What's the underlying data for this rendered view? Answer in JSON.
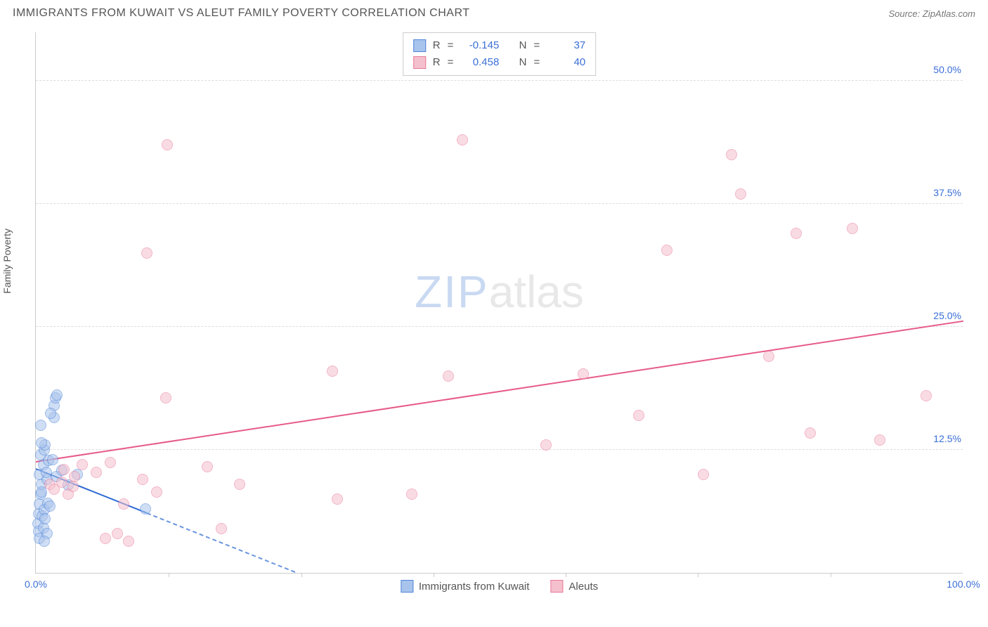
{
  "title": "IMMIGRANTS FROM KUWAIT VS ALEUT FAMILY POVERTY CORRELATION CHART",
  "source": "Source: ZipAtlas.com",
  "ylabel": "Family Poverty",
  "watermark": {
    "part1": "ZIP",
    "part2": "atlas"
  },
  "chart": {
    "type": "scatter",
    "xlim": [
      0,
      100
    ],
    "ylim": [
      0,
      55
    ],
    "yticks": [
      {
        "v": 12.5,
        "label": "12.5%"
      },
      {
        "v": 25.0,
        "label": "25.0%"
      },
      {
        "v": 37.5,
        "label": "37.5%"
      },
      {
        "v": 50.0,
        "label": "50.0%"
      }
    ],
    "xticks_labeled": [
      {
        "v": 0,
        "label": "0.0%"
      },
      {
        "v": 100,
        "label": "100.0%"
      }
    ],
    "xticks_minor": [
      14.3,
      28.6,
      42.9,
      57.1,
      71.4,
      85.7
    ],
    "background_color": "#ffffff",
    "grid_color": "#dddddd",
    "axis_color": "#cccccc",
    "tick_label_color": "#3b6fd6",
    "point_radius": 8,
    "point_opacity": 0.55,
    "series": [
      {
        "id": "kuwait",
        "label": "Immigrants from Kuwait",
        "color_fill": "#a9c4ec",
        "color_stroke": "#4f84d9",
        "R": "-0.145",
        "N": "37",
        "regression": {
          "x1": 0,
          "y1": 10.5,
          "x2": 12,
          "y2": 6.0,
          "solid": true,
          "color": "#2e6bd6"
        },
        "regression_ext": {
          "x1": 12,
          "y1": 6.0,
          "x2": 28,
          "y2": 0.0,
          "color": "#6a95e0"
        },
        "points": [
          [
            0.2,
            5.0
          ],
          [
            0.3,
            6.0
          ],
          [
            0.4,
            7.0
          ],
          [
            0.5,
            8.0
          ],
          [
            0.6,
            9.0
          ],
          [
            0.4,
            10.0
          ],
          [
            0.8,
            11.0
          ],
          [
            0.5,
            12.0
          ],
          [
            0.9,
            12.5
          ],
          [
            1.0,
            13.0
          ],
          [
            1.2,
            9.5
          ],
          [
            0.3,
            4.2
          ],
          [
            0.7,
            5.8
          ],
          [
            1.1,
            10.2
          ],
          [
            1.4,
            11.4
          ],
          [
            0.6,
            13.2
          ],
          [
            0.9,
            6.4
          ],
          [
            1.3,
            7.1
          ],
          [
            0.5,
            15.0
          ],
          [
            1.8,
            11.5
          ],
          [
            2.2,
            9.8
          ],
          [
            2.8,
            10.4
          ],
          [
            3.5,
            8.9
          ],
          [
            2.0,
            17.0
          ],
          [
            2.1,
            17.8
          ],
          [
            2.3,
            18.1
          ],
          [
            2.0,
            15.8
          ],
          [
            1.6,
            16.2
          ],
          [
            0.4,
            3.5
          ],
          [
            0.8,
            4.6
          ],
          [
            1.0,
            5.5
          ],
          [
            1.5,
            6.8
          ],
          [
            0.6,
            8.2
          ],
          [
            4.5,
            10.0
          ],
          [
            11.8,
            6.5
          ],
          [
            1.2,
            4.0
          ],
          [
            0.9,
            3.2
          ]
        ]
      },
      {
        "id": "aleuts",
        "label": "Aleuts",
        "color_fill": "#f5c0cd",
        "color_stroke": "#e97a9a",
        "R": "0.458",
        "N": "40",
        "regression": {
          "x1": 0,
          "y1": 11.2,
          "x2": 100,
          "y2": 25.5,
          "solid": true,
          "color": "#e75a87"
        },
        "points": [
          [
            1.5,
            9.0
          ],
          [
            2.0,
            8.5
          ],
          [
            2.8,
            9.2
          ],
          [
            3.5,
            8.0
          ],
          [
            4.2,
            9.8
          ],
          [
            3.0,
            10.5
          ],
          [
            5.0,
            11.0
          ],
          [
            6.5,
            10.2
          ],
          [
            7.5,
            3.5
          ],
          [
            8.8,
            4.0
          ],
          [
            10.0,
            3.2
          ],
          [
            8.0,
            11.2
          ],
          [
            9.5,
            7.0
          ],
          [
            11.5,
            9.5
          ],
          [
            13.0,
            8.2
          ],
          [
            14.0,
            17.8
          ],
          [
            14.2,
            43.5
          ],
          [
            12.0,
            32.5
          ],
          [
            18.5,
            10.8
          ],
          [
            20.0,
            4.5
          ],
          [
            22.0,
            9.0
          ],
          [
            32.0,
            20.5
          ],
          [
            32.5,
            7.5
          ],
          [
            40.5,
            8.0
          ],
          [
            44.5,
            20.0
          ],
          [
            46.0,
            44.0
          ],
          [
            55.0,
            13.0
          ],
          [
            59.0,
            20.2
          ],
          [
            65.0,
            16.0
          ],
          [
            68.0,
            32.8
          ],
          [
            72.0,
            10.0
          ],
          [
            75.0,
            42.5
          ],
          [
            76.0,
            38.5
          ],
          [
            79.0,
            22.0
          ],
          [
            82.0,
            34.5
          ],
          [
            83.5,
            14.2
          ],
          [
            88.0,
            35.0
          ],
          [
            91.0,
            13.5
          ],
          [
            96.0,
            18.0
          ],
          [
            4.0,
            8.8
          ]
        ]
      }
    ]
  },
  "stats_box": {
    "r_label": "R",
    "n_label": "N",
    "eq": "="
  }
}
